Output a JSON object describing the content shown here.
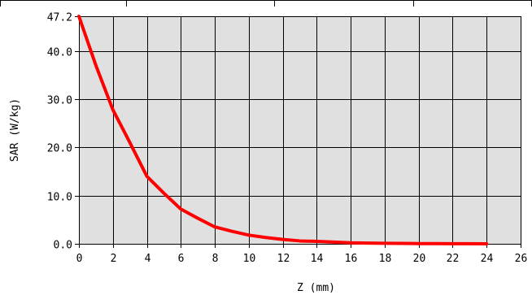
{
  "chart_data": {
    "type": "line",
    "xlabel": "Z (mm)",
    "ylabel": "SAR (W/kg)",
    "xlim": [
      0,
      26
    ],
    "ylim": [
      0,
      47.2
    ],
    "x_ticks": [
      "0",
      "2",
      "4",
      "6",
      "8",
      "10",
      "12",
      "14",
      "16",
      "18",
      "20",
      "22",
      "24",
      "26"
    ],
    "y_ticks": [
      "0.0",
      "10.0",
      "20.0",
      "30.0",
      "40.0",
      "47.2"
    ],
    "y_tick_values": [
      0,
      10,
      20,
      30,
      40,
      47.2
    ],
    "grid": true,
    "series": [
      {
        "color": "#ff0000",
        "x": [
          0,
          1,
          2,
          3,
          4,
          5,
          6,
          7,
          8,
          9,
          10,
          11,
          12,
          13,
          14,
          15,
          16,
          17,
          18,
          19,
          20,
          21,
          22,
          23,
          24
        ],
        "y": [
          47.2,
          37.0,
          27.8,
          21.0,
          14.0,
          10.5,
          7.2,
          5.3,
          3.5,
          2.6,
          1.8,
          1.3,
          0.9,
          0.6,
          0.5,
          0.35,
          0.2,
          0.15,
          0.1,
          0.08,
          0.05,
          0.04,
          0.03,
          0.02,
          0.0
        ]
      }
    ],
    "colors": {
      "plot_background": "#e0e0e0",
      "grid": "#000000",
      "line": "#ff0000"
    }
  }
}
